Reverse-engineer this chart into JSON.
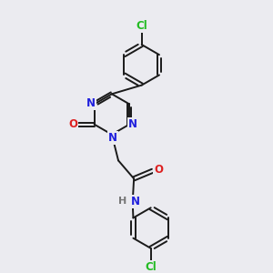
{
  "bg_color": "#ebebf0",
  "bond_color": "#1a1a1a",
  "N_color": "#2020dd",
  "O_color": "#dd2020",
  "Cl_color": "#22bb22",
  "H_color": "#777777",
  "bond_width": 1.4,
  "figsize": [
    3.0,
    3.0
  ],
  "dpi": 100,
  "xlim": [
    0,
    10
  ],
  "ylim": [
    0,
    10
  ]
}
